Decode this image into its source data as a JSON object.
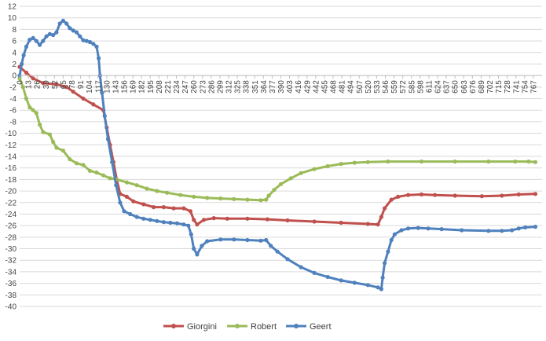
{
  "chart_data": {
    "type": "line",
    "title": "",
    "xlabel": "",
    "ylabel": "",
    "ylim": [
      -40,
      12
    ],
    "yticks": [
      12,
      10,
      8,
      6,
      4,
      2,
      0,
      -2,
      -4,
      -6,
      -8,
      -10,
      -12,
      -14,
      -16,
      -18,
      -20,
      -22,
      -24,
      -26,
      -28,
      -30,
      -32,
      -34,
      -36,
      -38,
      -40
    ],
    "xlim": [
      0,
      780
    ],
    "xticks": [
      0,
      13,
      26,
      39,
      52,
      65,
      78,
      91,
      104,
      117,
      130,
      143,
      156,
      169,
      182,
      195,
      208,
      221,
      234,
      247,
      260,
      273,
      286,
      299,
      312,
      325,
      338,
      351,
      364,
      377,
      390,
      403,
      416,
      429,
      442,
      455,
      468,
      481,
      494,
      507,
      520,
      533,
      546,
      559,
      572,
      585,
      598,
      611,
      624,
      637,
      650,
      663,
      676,
      689,
      702,
      715,
      728,
      741,
      754,
      767
    ],
    "grid": true,
    "legend": "bottom",
    "series": [
      {
        "name": "Giorgini",
        "color": "#C0504D",
        "points": [
          [
            0,
            1.5
          ],
          [
            10,
            0.5
          ],
          [
            20,
            -0.5
          ],
          [
            35,
            -1.3
          ],
          [
            55,
            -1.5
          ],
          [
            70,
            -2
          ],
          [
            80,
            -2.8
          ],
          [
            95,
            -4
          ],
          [
            110,
            -5
          ],
          [
            125,
            -6
          ],
          [
            130,
            -9
          ],
          [
            135,
            -12
          ],
          [
            140,
            -15
          ],
          [
            145,
            -18
          ],
          [
            150,
            -20.5
          ],
          [
            160,
            -21
          ],
          [
            170,
            -21.8
          ],
          [
            185,
            -22.3
          ],
          [
            200,
            -22.8
          ],
          [
            215,
            -22.8
          ],
          [
            230,
            -23
          ],
          [
            245,
            -23
          ],
          [
            255,
            -23.5
          ],
          [
            260,
            -25
          ],
          [
            265,
            -25.8
          ],
          [
            275,
            -25
          ],
          [
            290,
            -24.7
          ],
          [
            310,
            -24.8
          ],
          [
            340,
            -24.8
          ],
          [
            370,
            -24.9
          ],
          [
            400,
            -25.1
          ],
          [
            440,
            -25.3
          ],
          [
            480,
            -25.5
          ],
          [
            520,
            -25.7
          ],
          [
            535,
            -25.8
          ],
          [
            540,
            -24.5
          ],
          [
            545,
            -23
          ],
          [
            555,
            -21.5
          ],
          [
            565,
            -21
          ],
          [
            580,
            -20.7
          ],
          [
            600,
            -20.6
          ],
          [
            620,
            -20.7
          ],
          [
            650,
            -20.8
          ],
          [
            690,
            -20.9
          ],
          [
            720,
            -20.8
          ],
          [
            745,
            -20.6
          ],
          [
            770,
            -20.5
          ]
        ]
      },
      {
        "name": "Robert",
        "color": "#9BBB59",
        "points": [
          [
            0,
            -0.5
          ],
          [
            5,
            -2
          ],
          [
            10,
            -4
          ],
          [
            15,
            -5.5
          ],
          [
            20,
            -6
          ],
          [
            25,
            -6.5
          ],
          [
            30,
            -8.5
          ],
          [
            35,
            -9.8
          ],
          [
            45,
            -10.2
          ],
          [
            50,
            -11.5
          ],
          [
            55,
            -12.5
          ],
          [
            65,
            -13
          ],
          [
            75,
            -14.5
          ],
          [
            85,
            -15.2
          ],
          [
            95,
            -15.5
          ],
          [
            105,
            -16.5
          ],
          [
            115,
            -16.8
          ],
          [
            125,
            -17.3
          ],
          [
            135,
            -17.8
          ],
          [
            145,
            -18
          ],
          [
            160,
            -18.5
          ],
          [
            175,
            -19
          ],
          [
            190,
            -19.6
          ],
          [
            205,
            -20
          ],
          [
            220,
            -20.3
          ],
          [
            240,
            -20.7
          ],
          [
            260,
            -21
          ],
          [
            280,
            -21.2
          ],
          [
            300,
            -21.3
          ],
          [
            320,
            -21.4
          ],
          [
            340,
            -21.5
          ],
          [
            360,
            -21.6
          ],
          [
            368,
            -21.5
          ],
          [
            372,
            -20.8
          ],
          [
            380,
            -19.8
          ],
          [
            390,
            -18.8
          ],
          [
            405,
            -17.8
          ],
          [
            420,
            -16.9
          ],
          [
            440,
            -16.2
          ],
          [
            460,
            -15.7
          ],
          [
            480,
            -15.3
          ],
          [
            500,
            -15.1
          ],
          [
            520,
            -15
          ],
          [
            550,
            -14.9
          ],
          [
            600,
            -14.9
          ],
          [
            650,
            -14.9
          ],
          [
            700,
            -14.9
          ],
          [
            740,
            -14.9
          ],
          [
            760,
            -14.9
          ],
          [
            770,
            -15
          ]
        ]
      },
      {
        "name": "Geert",
        "color": "#4F81BD",
        "points": [
          [
            0,
            0
          ],
          [
            3,
            2
          ],
          [
            6,
            3.5
          ],
          [
            10,
            5
          ],
          [
            15,
            6.2
          ],
          [
            20,
            6.5
          ],
          [
            25,
            6
          ],
          [
            30,
            5.3
          ],
          [
            35,
            6
          ],
          [
            40,
            6.8
          ],
          [
            45,
            7.2
          ],
          [
            50,
            7
          ],
          [
            55,
            7.5
          ],
          [
            60,
            9
          ],
          [
            65,
            9.5
          ],
          [
            70,
            9
          ],
          [
            75,
            8.2
          ],
          [
            80,
            7.8
          ],
          [
            85,
            7.5
          ],
          [
            90,
            6.8
          ],
          [
            95,
            6.1
          ],
          [
            100,
            6
          ],
          [
            105,
            5.8
          ],
          [
            110,
            5.5
          ],
          [
            115,
            5
          ],
          [
            118,
            3
          ],
          [
            120,
            0
          ],
          [
            123,
            -3
          ],
          [
            127,
            -7
          ],
          [
            132,
            -11
          ],
          [
            138,
            -15
          ],
          [
            144,
            -19
          ],
          [
            150,
            -22
          ],
          [
            156,
            -23.5
          ],
          [
            165,
            -24
          ],
          [
            175,
            -24.5
          ],
          [
            185,
            -24.8
          ],
          [
            195,
            -25
          ],
          [
            205,
            -25.2
          ],
          [
            215,
            -25.4
          ],
          [
            225,
            -25.5
          ],
          [
            235,
            -25.6
          ],
          [
            245,
            -25.8
          ],
          [
            252,
            -26
          ],
          [
            256,
            -27.5
          ],
          [
            260,
            -30
          ],
          [
            265,
            -31
          ],
          [
            272,
            -29.5
          ],
          [
            280,
            -28.7
          ],
          [
            300,
            -28.4
          ],
          [
            320,
            -28.4
          ],
          [
            340,
            -28.5
          ],
          [
            360,
            -28.6
          ],
          [
            368,
            -28.5
          ],
          [
            375,
            -29.5
          ],
          [
            385,
            -30.5
          ],
          [
            400,
            -31.8
          ],
          [
            420,
            -33.2
          ],
          [
            440,
            -34.2
          ],
          [
            460,
            -34.9
          ],
          [
            480,
            -35.5
          ],
          [
            500,
            -35.9
          ],
          [
            520,
            -36.3
          ],
          [
            535,
            -36.7
          ],
          [
            540,
            -37
          ],
          [
            542,
            -35
          ],
          [
            545,
            -32.5
          ],
          [
            550,
            -30.5
          ],
          [
            555,
            -28.5
          ],
          [
            560,
            -27.5
          ],
          [
            570,
            -26.8
          ],
          [
            580,
            -26.5
          ],
          [
            595,
            -26.4
          ],
          [
            610,
            -26.5
          ],
          [
            630,
            -26.6
          ],
          [
            660,
            -26.8
          ],
          [
            700,
            -26.9
          ],
          [
            720,
            -26.9
          ],
          [
            735,
            -26.8
          ],
          [
            745,
            -26.5
          ],
          [
            755,
            -26.3
          ],
          [
            770,
            -26.2
          ]
        ]
      }
    ]
  }
}
